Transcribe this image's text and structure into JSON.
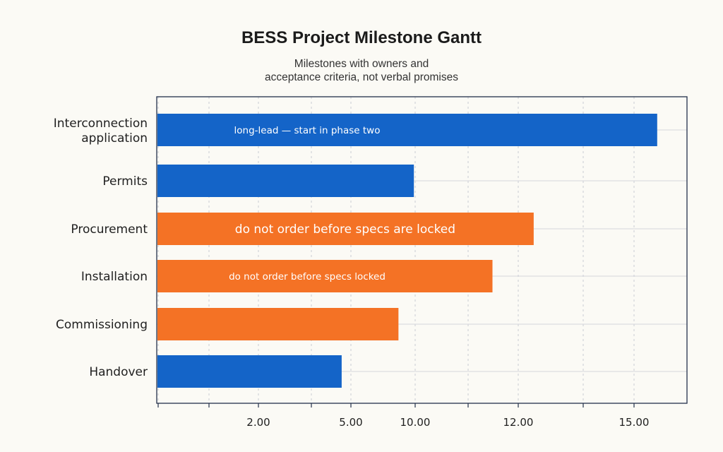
{
  "chart_data": {
    "type": "bar",
    "orientation": "horizontal",
    "title": "BESS Project Milestone Gantt",
    "subtitle": "Milestones with owners and acceptance criteria, not verbal promises",
    "categories": [
      "Interconnection application",
      "Permits",
      "Procurement",
      "Installation",
      "Commissioning",
      "Handover"
    ],
    "values": [
      15.6,
      9.9,
      12.4,
      11.5,
      8.7,
      4.7
    ],
    "bar_labels": [
      "long-lead — start in phase two",
      "",
      "do not order before specs are locked",
      "do not order before specs locked",
      "",
      ""
    ],
    "bar_colors": [
      "#1464c8",
      "#1464c8",
      "#f47225",
      "#f47225",
      "#f47225",
      "#1464c8"
    ],
    "x_ticks": [
      {
        "value": 2,
        "label": "2.00"
      },
      {
        "value": 5,
        "label": "5.00"
      },
      {
        "value": 10,
        "label": "10.00"
      },
      {
        "value": 12,
        "label": "12.00"
      },
      {
        "value": 15,
        "label": "15.00"
      }
    ],
    "grid": true,
    "legend": "none"
  }
}
